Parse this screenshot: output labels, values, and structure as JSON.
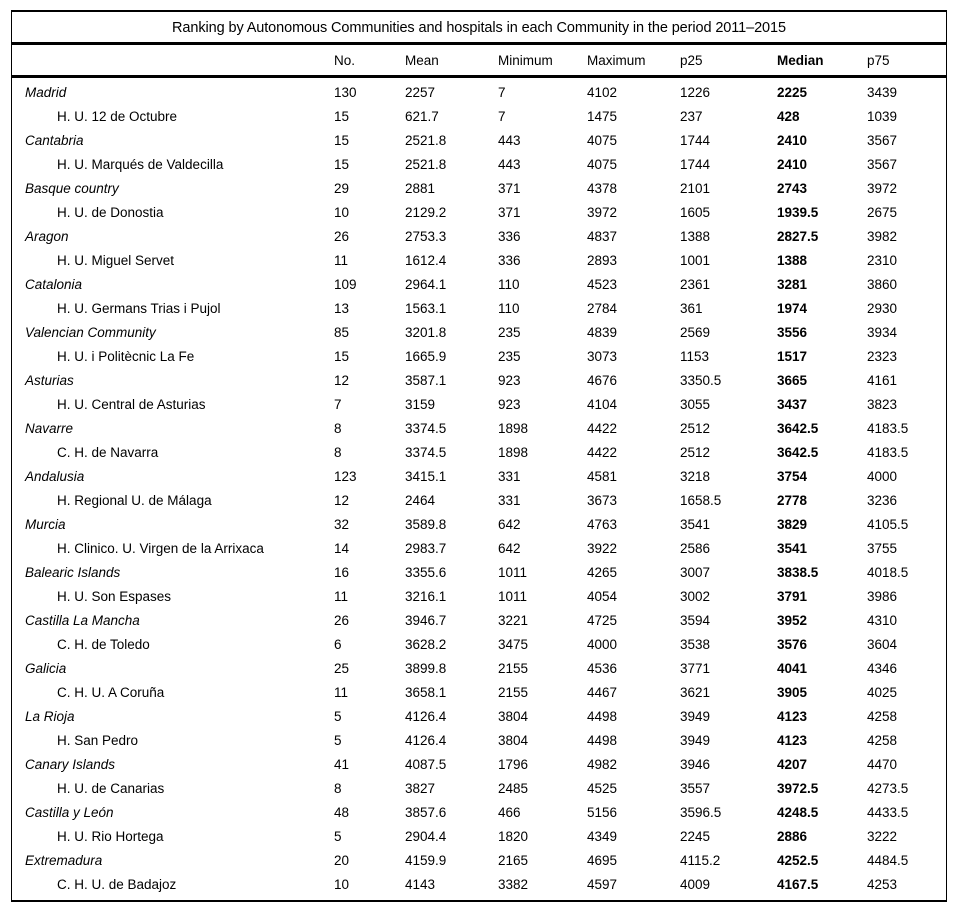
{
  "title": "Ranking by Autonomous Communities and hospitals in each Community in the period 2011–2015",
  "colors": {
    "text": "#000000",
    "background": "#ffffff",
    "rule": "#000000"
  },
  "table": {
    "columns": [
      "No.",
      "Mean",
      "Minimum",
      "Maximum",
      "p25",
      "Median",
      "p75"
    ],
    "rows": [
      {
        "type": "community",
        "label": "Madrid",
        "no": "130",
        "mean": "2257",
        "min": "7",
        "max": "4102",
        "p25": "1226",
        "median": "2225",
        "p75": "3439"
      },
      {
        "type": "hospital",
        "label": "H. U. 12 de Octubre",
        "no": "15",
        "mean": "621.7",
        "min": "7",
        "max": "1475",
        "p25": "237",
        "median": "428",
        "p75": "1039"
      },
      {
        "type": "community",
        "label": "Cantabria",
        "no": "15",
        "mean": "2521.8",
        "min": "443",
        "max": "4075",
        "p25": "1744",
        "median": "2410",
        "p75": "3567"
      },
      {
        "type": "hospital",
        "label": "H. U. Marqués de Valdecilla",
        "no": "15",
        "mean": "2521.8",
        "min": "443",
        "max": "4075",
        "p25": "1744",
        "median": "2410",
        "p75": "3567"
      },
      {
        "type": "community",
        "label": "Basque country",
        "no": "29",
        "mean": "2881",
        "min": "371",
        "max": "4378",
        "p25": "2101",
        "median": "2743",
        "p75": "3972"
      },
      {
        "type": "hospital",
        "label": "H. U. de Donostia",
        "no": "10",
        "mean": "2129.2",
        "min": "371",
        "max": "3972",
        "p25": "1605",
        "median": "1939.5",
        "p75": "2675"
      },
      {
        "type": "community",
        "label": "Aragon",
        "no": "26",
        "mean": "2753.3",
        "min": "336",
        "max": "4837",
        "p25": "1388",
        "median": "2827.5",
        "p75": "3982"
      },
      {
        "type": "hospital",
        "label": "H. U. Miguel Servet",
        "no": "11",
        "mean": "1612.4",
        "min": "336",
        "max": "2893",
        "p25": "1001",
        "median": "1388",
        "p75": "2310"
      },
      {
        "type": "community",
        "label": "Catalonia",
        "no": "109",
        "mean": "2964.1",
        "min": "110",
        "max": "4523",
        "p25": "2361",
        "median": "3281",
        "p75": "3860"
      },
      {
        "type": "hospital",
        "label": "H. U. Germans Trias i Pujol",
        "no": "13",
        "mean": "1563.1",
        "min": "110",
        "max": "2784",
        "p25": "361",
        "median": "1974",
        "p75": "2930"
      },
      {
        "type": "community",
        "label": "Valencian Community",
        "no": "85",
        "mean": "3201.8",
        "min": "235",
        "max": "4839",
        "p25": "2569",
        "median": "3556",
        "p75": "3934"
      },
      {
        "type": "hospital",
        "label": "H. U. i Politècnic La Fe",
        "no": "15",
        "mean": "1665.9",
        "min": "235",
        "max": "3073",
        "p25": "1153",
        "median": "1517",
        "p75": "2323"
      },
      {
        "type": "community",
        "label": "Asturias",
        "no": "12",
        "mean": "3587.1",
        "min": "923",
        "max": "4676",
        "p25": "3350.5",
        "median": "3665",
        "p75": "4161"
      },
      {
        "type": "hospital",
        "label": "H. U. Central de Asturias",
        "no": "7",
        "mean": "3159",
        "min": "923",
        "max": "4104",
        "p25": "3055",
        "median": "3437",
        "p75": "3823"
      },
      {
        "type": "community",
        "label": "Navarre",
        "no": "8",
        "mean": "3374.5",
        "min": "1898",
        "max": "4422",
        "p25": "2512",
        "median": "3642.5",
        "p75": "4183.5"
      },
      {
        "type": "hospital",
        "label": "C. H. de Navarra",
        "no": "8",
        "mean": "3374.5",
        "min": "1898",
        "max": "4422",
        "p25": "2512",
        "median": "3642.5",
        "p75": "4183.5"
      },
      {
        "type": "community",
        "label": "Andalusia",
        "no": "123",
        "mean": "3415.1",
        "min": "331",
        "max": "4581",
        "p25": "3218",
        "median": "3754",
        "p75": "4000"
      },
      {
        "type": "hospital",
        "label": "H. Regional U. de Málaga",
        "no": "12",
        "mean": "2464",
        "min": "331",
        "max": "3673",
        "p25": "1658.5",
        "median": "2778",
        "p75": "3236"
      },
      {
        "type": "community",
        "label": "Murcia",
        "no": "32",
        "mean": "3589.8",
        "min": "642",
        "max": "4763",
        "p25": "3541",
        "median": "3829",
        "p75": "4105.5"
      },
      {
        "type": "hospital",
        "label": "H. Clinico. U. Virgen de la Arrixaca",
        "no": "14",
        "mean": "2983.7",
        "min": "642",
        "max": "3922",
        "p25": "2586",
        "median": "3541",
        "p75": "3755"
      },
      {
        "type": "community",
        "label": "Balearic Islands",
        "no": "16",
        "mean": "3355.6",
        "min": "1011",
        "max": "4265",
        "p25": "3007",
        "median": "3838.5",
        "p75": "4018.5"
      },
      {
        "type": "hospital",
        "label": "H. U. Son Espases",
        "no": "11",
        "mean": "3216.1",
        "min": "1011",
        "max": "4054",
        "p25": "3002",
        "median": "3791",
        "p75": "3986"
      },
      {
        "type": "community",
        "label": "Castilla La Mancha",
        "no": "26",
        "mean": "3946.7",
        "min": "3221",
        "max": "4725",
        "p25": "3594",
        "median": "3952",
        "p75": "4310"
      },
      {
        "type": "hospital",
        "label": "C. H. de Toledo",
        "no": "6",
        "mean": "3628.2",
        "min": "3475",
        "max": "4000",
        "p25": "3538",
        "median": "3576",
        "p75": "3604"
      },
      {
        "type": "community",
        "label": "Galicia",
        "no": "25",
        "mean": "3899.8",
        "min": "2155",
        "max": "4536",
        "p25": "3771",
        "median": "4041",
        "p75": "4346"
      },
      {
        "type": "hospital",
        "label": "C. H. U. A Coruña",
        "no": "11",
        "mean": "3658.1",
        "min": "2155",
        "max": "4467",
        "p25": "3621",
        "median": "3905",
        "p75": "4025"
      },
      {
        "type": "community",
        "label": "La Rioja",
        "no": "5",
        "mean": "4126.4",
        "min": "3804",
        "max": "4498",
        "p25": "3949",
        "median": "4123",
        "p75": "4258"
      },
      {
        "type": "hospital",
        "label": "H. San Pedro",
        "no": "5",
        "mean": "4126.4",
        "min": "3804",
        "max": "4498",
        "p25": "3949",
        "median": "4123",
        "p75": "4258"
      },
      {
        "type": "community",
        "label": "Canary Islands",
        "no": "41",
        "mean": "4087.5",
        "min": "1796",
        "max": "4982",
        "p25": "3946",
        "median": "4207",
        "p75": "4470"
      },
      {
        "type": "hospital",
        "label": "H. U. de Canarias",
        "no": "8",
        "mean": "3827",
        "min": "2485",
        "max": "4525",
        "p25": "3557",
        "median": "3972.5",
        "p75": "4273.5"
      },
      {
        "type": "community",
        "label": "Castilla y León",
        "no": "48",
        "mean": "3857.6",
        "min": "466",
        "max": "5156",
        "p25": "3596.5",
        "median": "4248.5",
        "p75": "4433.5"
      },
      {
        "type": "hospital",
        "label": "H. U. Rio Hortega",
        "no": "5",
        "mean": "2904.4",
        "min": "1820",
        "max": "4349",
        "p25": "2245",
        "median": "2886",
        "p75": "3222"
      },
      {
        "type": "community",
        "label": "Extremadura",
        "no": "20",
        "mean": "4159.9",
        "min": "2165",
        "max": "4695",
        "p25": "4115.2",
        "median": "4252.5",
        "p75": "4484.5"
      },
      {
        "type": "hospital",
        "label": "C. H. U. de Badajoz",
        "no": "10",
        "mean": "4143",
        "min": "3382",
        "max": "4597",
        "p25": "4009",
        "median": "4167.5",
        "p75": "4253"
      }
    ]
  }
}
